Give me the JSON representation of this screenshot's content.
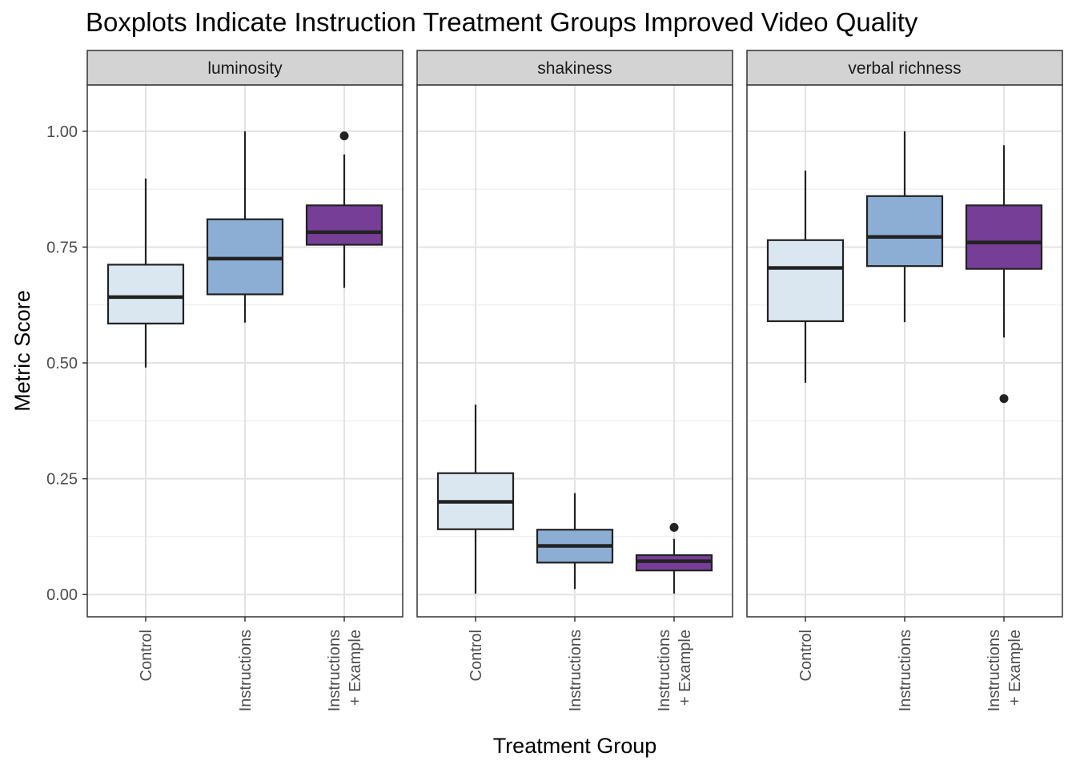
{
  "chart_data": {
    "type": "boxplot",
    "title": "Boxplots Indicate Instruction Treatment Groups Improved Video Quality",
    "xlabel": "Treatment Group",
    "ylabel": "Metric Score",
    "ylim": [
      -0.048,
      1.1
    ],
    "y_ticks": [
      0.0,
      0.25,
      0.5,
      0.75,
      1.0
    ],
    "y_tick_labels": [
      "0.00",
      "0.25",
      "0.50",
      "0.75",
      "1.00"
    ],
    "y_minor_ticks": [
      0.125,
      0.375,
      0.625,
      0.875
    ],
    "categories": [
      "Control",
      "Instructions",
      "Instructions\n+ Example"
    ],
    "category_colors": [
      "#dae7f1",
      "#8caed4",
      "#773e98"
    ],
    "grid": true,
    "legend": "none",
    "facets": [
      {
        "name": "luminosity",
        "boxes": [
          {
            "category": "Control",
            "whisker_low": 0.49,
            "q1": 0.585,
            "median": 0.642,
            "q3": 0.712,
            "whisker_high": 0.898,
            "outliers": []
          },
          {
            "category": "Instructions",
            "whisker_low": 0.587,
            "q1": 0.648,
            "median": 0.725,
            "q3": 0.81,
            "whisker_high": 1.0,
            "outliers": []
          },
          {
            "category": "Instructions\n+ Example",
            "whisker_low": 0.662,
            "q1": 0.755,
            "median": 0.782,
            "q3": 0.84,
            "whisker_high": 0.95,
            "outliers": [
              0.99
            ]
          }
        ]
      },
      {
        "name": "shakiness",
        "boxes": [
          {
            "category": "Control",
            "whisker_low": 0.002,
            "q1": 0.141,
            "median": 0.2,
            "q3": 0.262,
            "whisker_high": 0.41,
            "outliers": []
          },
          {
            "category": "Instructions",
            "whisker_low": 0.012,
            "q1": 0.069,
            "median": 0.105,
            "q3": 0.14,
            "whisker_high": 0.219,
            "outliers": []
          },
          {
            "category": "Instructions\n+ Example",
            "whisker_low": 0.002,
            "q1": 0.052,
            "median": 0.072,
            "q3": 0.085,
            "whisker_high": 0.12,
            "outliers": [
              0.145
            ]
          }
        ]
      },
      {
        "name": "verbal richness",
        "boxes": [
          {
            "category": "Control",
            "whisker_low": 0.457,
            "q1": 0.59,
            "median": 0.705,
            "q3": 0.765,
            "whisker_high": 0.915,
            "outliers": []
          },
          {
            "category": "Instructions",
            "whisker_low": 0.588,
            "q1": 0.709,
            "median": 0.772,
            "q3": 0.86,
            "whisker_high": 1.0,
            "outliers": []
          },
          {
            "category": "Instructions\n+ Example",
            "whisker_low": 0.555,
            "q1": 0.703,
            "median": 0.76,
            "q3": 0.84,
            "whisker_high": 0.97,
            "outliers": [
              0.423
            ]
          }
        ]
      }
    ]
  }
}
